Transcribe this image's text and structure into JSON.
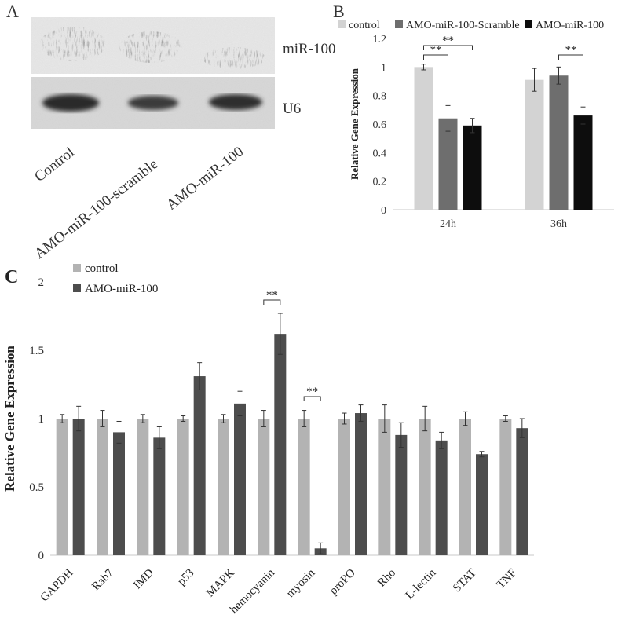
{
  "panel_labels": {
    "a": "A",
    "b": "B",
    "c": "C"
  },
  "blot": {
    "band_labels": [
      "miR-100",
      "U6"
    ],
    "lane_labels": [
      "Control",
      "AMO-miR-100-scramble",
      "AMO-miR-100"
    ]
  },
  "colors": {
    "light": "#d3d3d3",
    "mid": "#6e6e6e",
    "dark": "#0d0d0d",
    "cgray": "#b3b3b3",
    "cdark": "#4d4d4d"
  },
  "chart_data": [
    {
      "type": "bar",
      "panel": "B",
      "title": "",
      "xlabel": "",
      "ylabel": "Relative Gene Expression",
      "ylim": [
        0,
        1.2
      ],
      "yticks": [
        "0",
        "0.2",
        "0.4",
        "0.6",
        "0.8",
        "1",
        "1.2"
      ],
      "categories": [
        "24h",
        "36h"
      ],
      "legend_position": "top",
      "series": [
        {
          "name": "control",
          "values": [
            1.0,
            0.91
          ],
          "errors": [
            0.02,
            0.08
          ]
        },
        {
          "name": "AMO-miR-100-Scramble",
          "values": [
            0.64,
            0.94
          ],
          "errors": [
            0.09,
            0.06
          ]
        },
        {
          "name": "AMO-miR-100",
          "values": [
            0.59,
            0.66
          ],
          "errors": [
            0.05,
            0.06
          ]
        }
      ],
      "significance": [
        {
          "label": "**",
          "category": "24h",
          "between": [
            "control",
            "AMO-miR-100"
          ]
        },
        {
          "label": "**",
          "category": "24h",
          "between": [
            "control",
            "AMO-miR-100-Scramble"
          ]
        },
        {
          "label": "**",
          "category": "36h",
          "between": [
            "AMO-miR-100-Scramble",
            "AMO-miR-100"
          ]
        }
      ]
    },
    {
      "type": "bar",
      "panel": "C",
      "title": "",
      "xlabel": "",
      "ylabel": "Relative Gene Expression",
      "ylim": [
        0,
        2
      ],
      "yticks": [
        "0",
        "0.5",
        "1",
        "1.5",
        "2"
      ],
      "categories": [
        "GAPDH",
        "Rab7",
        "IMD",
        "p53",
        "MAPK",
        "hemocyanin",
        "myosin",
        "proPO",
        "Rho",
        "L-lectin",
        "STAT",
        "TNF"
      ],
      "legend_position": "top-left",
      "series": [
        {
          "name": "control",
          "values": [
            1.0,
            1.0,
            1.0,
            1.0,
            1.0,
            1.0,
            1.0,
            1.0,
            1.0,
            1.0,
            1.0,
            1.0
          ],
          "errors": [
            0.03,
            0.06,
            0.03,
            0.02,
            0.03,
            0.06,
            0.06,
            0.04,
            0.1,
            0.09,
            0.05,
            0.02
          ]
        },
        {
          "name": "AMO-miR-100",
          "values": [
            1.0,
            0.9,
            0.86,
            1.31,
            1.11,
            1.62,
            0.05,
            1.04,
            0.88,
            0.84,
            0.74,
            0.93
          ],
          "errors": [
            0.09,
            0.08,
            0.08,
            0.1,
            0.09,
            0.15,
            0.04,
            0.06,
            0.09,
            0.06,
            0.02,
            0.07
          ]
        }
      ],
      "significance": [
        {
          "label": "**",
          "category": "hemocyanin",
          "between": [
            "control",
            "AMO-miR-100"
          ]
        },
        {
          "label": "**",
          "category": "myosin",
          "between": [
            "control",
            "AMO-miR-100"
          ]
        }
      ]
    }
  ]
}
